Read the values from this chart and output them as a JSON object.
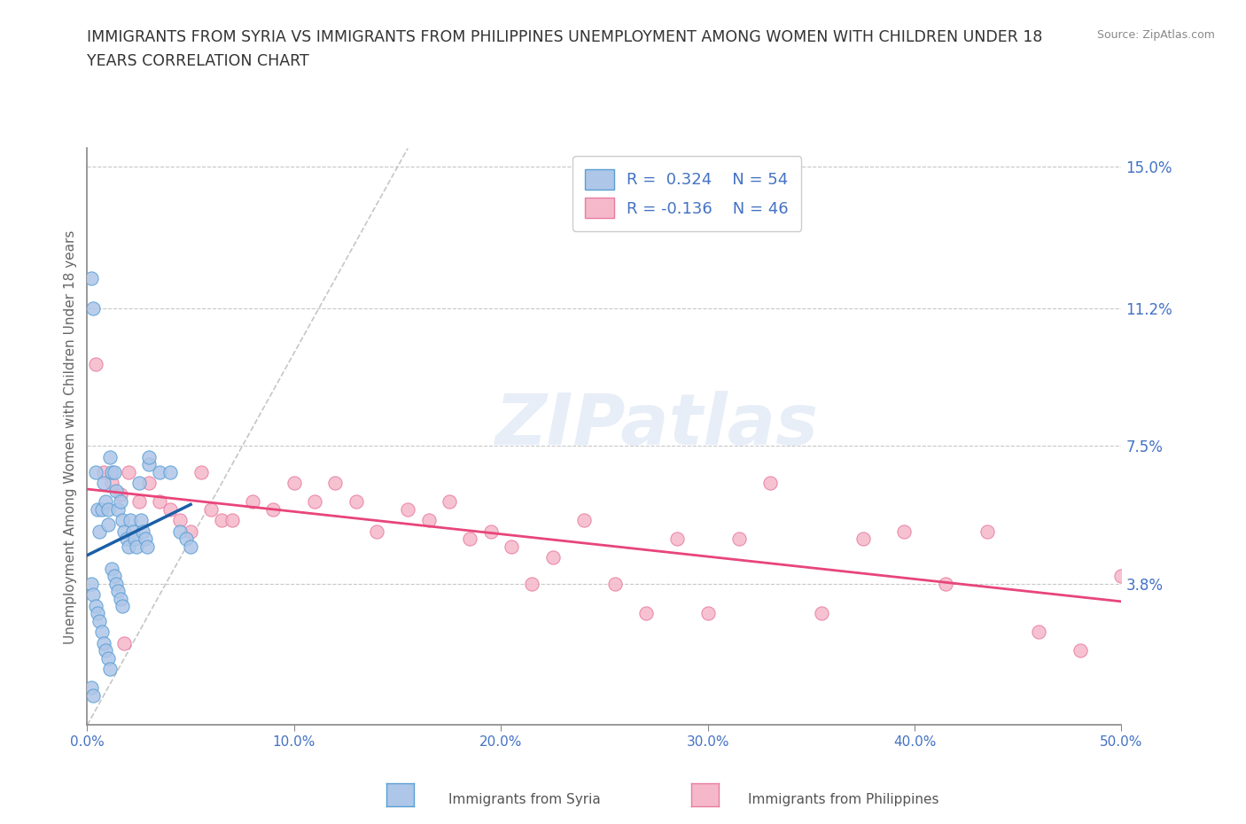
{
  "title_line1": "IMMIGRANTS FROM SYRIA VS IMMIGRANTS FROM PHILIPPINES UNEMPLOYMENT AMONG WOMEN WITH CHILDREN UNDER 18",
  "title_line2": "YEARS CORRELATION CHART",
  "source": "Source: ZipAtlas.com",
  "ylabel": "Unemployment Among Women with Children Under 18 years",
  "xlim": [
    0.0,
    0.5
  ],
  "ylim": [
    0.0,
    0.155
  ],
  "xticks": [
    0.0,
    0.1,
    0.2,
    0.3,
    0.4,
    0.5
  ],
  "xticklabels": [
    "0.0%",
    "10.0%",
    "20.0%",
    "30.0%",
    "40.0%",
    "50.0%"
  ],
  "yticks_right": [
    0.038,
    0.075,
    0.112,
    0.15
  ],
  "yticks_right_labels": [
    "3.8%",
    "7.5%",
    "11.2%",
    "15.0%"
  ],
  "syria_color": "#aec6e8",
  "syria_edge": "#5a9fd4",
  "philippines_color": "#f5b8cb",
  "philippines_edge": "#e87da0",
  "trend_syria_color": "#1a5fa8",
  "trend_philippines_color": "#e8457a",
  "diagonal_color": "#b8b8b8",
  "grid_color": "#c8c8c8",
  "label_color": "#4472c4",
  "legend_syria_R": "0.324",
  "legend_syria_N": "54",
  "legend_philippines_R": "-0.136",
  "legend_philippines_N": "46",
  "syria_x": [
    0.002,
    0.003,
    0.004,
    0.005,
    0.006,
    0.007,
    0.008,
    0.009,
    0.01,
    0.01,
    0.011,
    0.012,
    0.013,
    0.014,
    0.015,
    0.016,
    0.017,
    0.018,
    0.019,
    0.02,
    0.021,
    0.022,
    0.023,
    0.024,
    0.025,
    0.026,
    0.027,
    0.028,
    0.029,
    0.03,
    0.002,
    0.003,
    0.004,
    0.005,
    0.006,
    0.007,
    0.008,
    0.009,
    0.01,
    0.011,
    0.012,
    0.013,
    0.014,
    0.015,
    0.016,
    0.017,
    0.03,
    0.035,
    0.04,
    0.045,
    0.048,
    0.05,
    0.002,
    0.003
  ],
  "syria_y": [
    0.12,
    0.112,
    0.068,
    0.058,
    0.052,
    0.058,
    0.065,
    0.06,
    0.058,
    0.054,
    0.072,
    0.068,
    0.068,
    0.063,
    0.058,
    0.06,
    0.055,
    0.052,
    0.05,
    0.048,
    0.055,
    0.052,
    0.05,
    0.048,
    0.065,
    0.055,
    0.052,
    0.05,
    0.048,
    0.07,
    0.038,
    0.035,
    0.032,
    0.03,
    0.028,
    0.025,
    0.022,
    0.02,
    0.018,
    0.015,
    0.042,
    0.04,
    0.038,
    0.036,
    0.034,
    0.032,
    0.072,
    0.068,
    0.068,
    0.052,
    0.05,
    0.048,
    0.01,
    0.008
  ],
  "philippines_x": [
    0.004,
    0.008,
    0.012,
    0.016,
    0.02,
    0.025,
    0.03,
    0.035,
    0.04,
    0.045,
    0.05,
    0.055,
    0.06,
    0.065,
    0.07,
    0.08,
    0.09,
    0.1,
    0.11,
    0.12,
    0.13,
    0.14,
    0.155,
    0.165,
    0.175,
    0.185,
    0.195,
    0.205,
    0.215,
    0.225,
    0.24,
    0.255,
    0.27,
    0.285,
    0.3,
    0.315,
    0.33,
    0.355,
    0.375,
    0.395,
    0.415,
    0.435,
    0.46,
    0.48,
    0.5,
    0.018
  ],
  "philippines_y": [
    0.097,
    0.068,
    0.065,
    0.062,
    0.068,
    0.06,
    0.065,
    0.06,
    0.058,
    0.055,
    0.052,
    0.068,
    0.058,
    0.055,
    0.055,
    0.06,
    0.058,
    0.065,
    0.06,
    0.065,
    0.06,
    0.052,
    0.058,
    0.055,
    0.06,
    0.05,
    0.052,
    0.048,
    0.038,
    0.045,
    0.055,
    0.038,
    0.03,
    0.05,
    0.03,
    0.05,
    0.065,
    0.03,
    0.05,
    0.052,
    0.038,
    0.052,
    0.025,
    0.02,
    0.04,
    0.022
  ],
  "watermark_text": "ZIPatlas",
  "bottom_legend_syria": "Immigrants from Syria",
  "bottom_legend_philippines": "Immigrants from Philippines"
}
